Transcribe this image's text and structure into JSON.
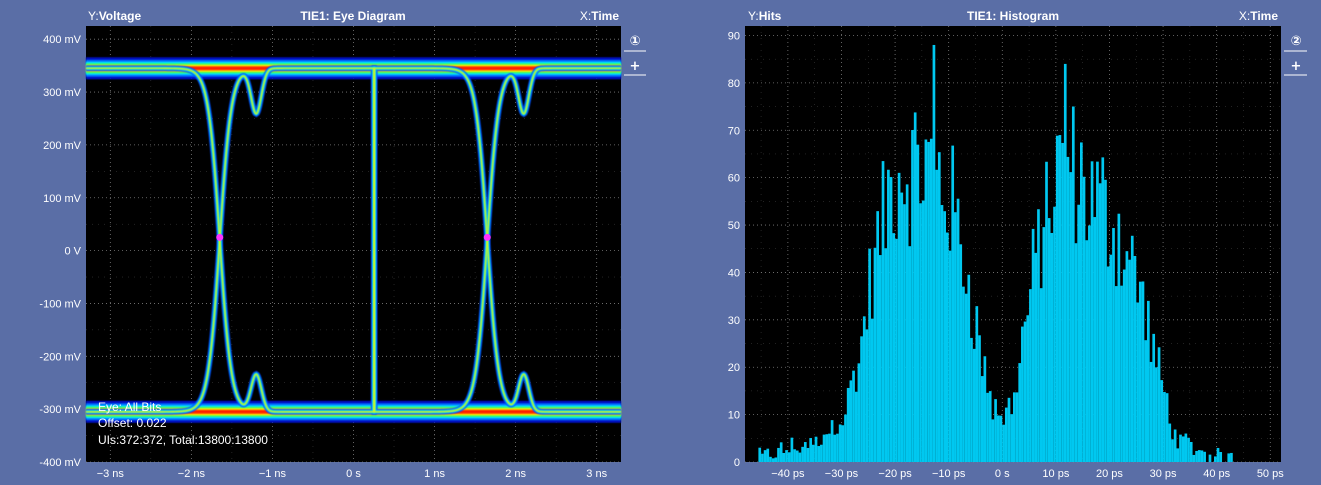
{
  "colors": {
    "background": "#5a6ea6",
    "plot_bg": "#000000",
    "grid": "#8a8a8a",
    "histogram_fill": "#00c8f0",
    "marker": "#ff33ff"
  },
  "chart_data": [
    {
      "type": "heatmap",
      "subtype": "eye-diagram",
      "title": "TIE1: Eye Diagram",
      "y_axis_label": "Y:",
      "y_axis_name": "Voltage",
      "x_axis_label": "X:",
      "x_axis_name": "Time",
      "badge": "①",
      "add_label": "+",
      "x_unit": "ns",
      "y_unit": "mV",
      "xlim": [
        -3.3,
        3.3
      ],
      "ylim": [
        -400,
        425
      ],
      "x_ticks": [
        -3,
        -2,
        -1,
        0,
        1,
        2,
        3
      ],
      "x_tick_labels": [
        "−3 ns",
        "−2 ns",
        "−1 ns",
        "0 s",
        "1 ns",
        "2 ns",
        "3 ns"
      ],
      "y_ticks": [
        400,
        300,
        200,
        100,
        0,
        -100,
        -200,
        -300,
        -400
      ],
      "y_tick_labels": [
        "400 mV",
        "300 mV",
        "200 mV",
        "100 mV",
        "0 V",
        "-100 mV",
        "-200 mV",
        "-300 mV",
        "-400 mV"
      ],
      "high_level_mV": 345,
      "low_level_mV": -305,
      "crossings_ns": [
        -1.65,
        1.65
      ],
      "crossing_level_mV": 25,
      "info_lines": [
        "Eye: All Bits",
        "Offset: 0.022",
        "UIs:372:372, Total:13800:13800"
      ],
      "grid": true
    },
    {
      "type": "bar",
      "subtype": "histogram",
      "title": "TIE1: Histogram",
      "y_axis_label": "Y:",
      "y_axis_name": "Hits",
      "x_axis_label": "X:",
      "x_axis_name": "Time",
      "badge": "②",
      "add_label": "+",
      "x_unit": "ps",
      "xlim": [
        -48,
        52
      ],
      "ylim": [
        0,
        92
      ],
      "x_ticks": [
        -40,
        -30,
        -20,
        -10,
        0,
        10,
        20,
        30,
        40,
        50
      ],
      "x_tick_labels": [
        "−40 ps",
        "−30 ps",
        "−20 ps",
        "−10 ps",
        "0 s",
        "10 ps",
        "20 ps",
        "30 ps",
        "40 ps",
        "50 ps"
      ],
      "y_ticks": [
        0,
        10,
        20,
        30,
        40,
        50,
        60,
        70,
        80,
        90
      ],
      "y_tick_labels": [
        "0",
        "10",
        "20",
        "30",
        "40",
        "50",
        "60",
        "70",
        "80",
        "90"
      ],
      "bin_width_ps": 0.5,
      "peaks": [
        {
          "x": -13,
          "y": 88
        },
        {
          "x": 11.5,
          "y": 84
        }
      ],
      "envelope": [
        {
          "x": -45,
          "y": 1
        },
        {
          "x": -40,
          "y": 3
        },
        {
          "x": -35,
          "y": 4
        },
        {
          "x": -30,
          "y": 10
        },
        {
          "x": -27,
          "y": 22
        },
        {
          "x": -25,
          "y": 38
        },
        {
          "x": -22,
          "y": 55
        },
        {
          "x": -20,
          "y": 63
        },
        {
          "x": -17,
          "y": 64
        },
        {
          "x": -15,
          "y": 65
        },
        {
          "x": -12,
          "y": 62
        },
        {
          "x": -10,
          "y": 57
        },
        {
          "x": -8,
          "y": 48
        },
        {
          "x": -6,
          "y": 36
        },
        {
          "x": -4,
          "y": 22
        },
        {
          "x": -2,
          "y": 12
        },
        {
          "x": 0,
          "y": 9
        },
        {
          "x": 2,
          "y": 15
        },
        {
          "x": 4,
          "y": 30
        },
        {
          "x": 7,
          "y": 50
        },
        {
          "x": 10,
          "y": 62
        },
        {
          "x": 13,
          "y": 63
        },
        {
          "x": 16,
          "y": 58
        },
        {
          "x": 19,
          "y": 55
        },
        {
          "x": 22,
          "y": 48
        },
        {
          "x": 25,
          "y": 40
        },
        {
          "x": 28,
          "y": 24
        },
        {
          "x": 30,
          "y": 15
        },
        {
          "x": 32,
          "y": 6
        },
        {
          "x": 35,
          "y": 3
        },
        {
          "x": 40,
          "y": 1
        },
        {
          "x": 45,
          "y": 0
        }
      ],
      "grid": true
    }
  ]
}
